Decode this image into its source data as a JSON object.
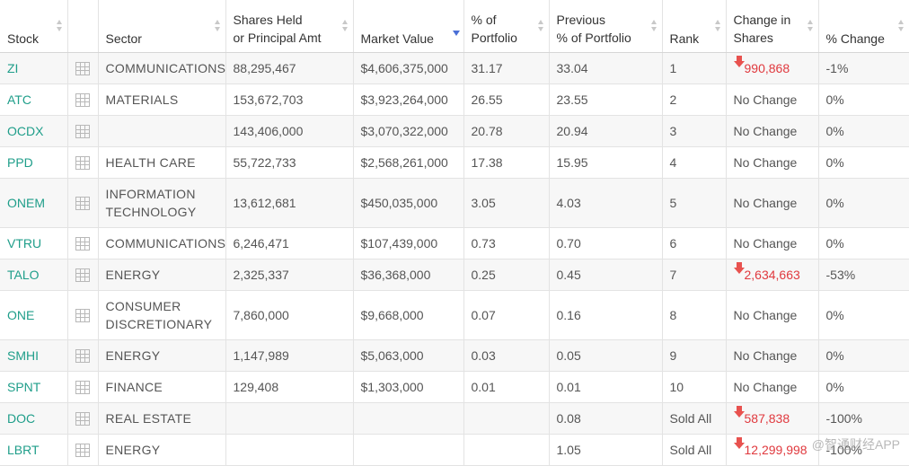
{
  "columns": [
    {
      "key": "stock",
      "label1": "Stock",
      "label2": "",
      "sort": "none"
    },
    {
      "key": "icon",
      "label1": "",
      "label2": "",
      "sort": ""
    },
    {
      "key": "sector",
      "label1": "Sector",
      "label2": "",
      "sort": "none"
    },
    {
      "key": "shares",
      "label1": "Shares Held",
      "label2": "or Principal Amt",
      "sort": "none"
    },
    {
      "key": "market_value",
      "label1": "Market Value",
      "label2": "",
      "sort": "desc"
    },
    {
      "key": "pct_portfolio",
      "label1": "% of",
      "label2": "Portfolio",
      "sort": "none"
    },
    {
      "key": "prev_pct",
      "label1": "Previous",
      "label2": "% of Portfolio",
      "sort": "none"
    },
    {
      "key": "rank",
      "label1": "Rank",
      "label2": "",
      "sort": "none"
    },
    {
      "key": "change_shares",
      "label1": "Change in",
      "label2": "Shares",
      "sort": "none"
    },
    {
      "key": "pct_change",
      "label1": "% Change",
      "label2": "",
      "sort": "none"
    }
  ],
  "rows": [
    {
      "stock": "ZI",
      "sector": "COMMUNICATIONS",
      "shares": "88,295,467",
      "market_value": "$4,606,375,000",
      "pct_portfolio": "31.17",
      "prev_pct": "33.04",
      "rank": "1",
      "change_shares": "990,868",
      "change_dir": "down",
      "pct_change": "-1%"
    },
    {
      "stock": "ATC",
      "sector": "MATERIALS",
      "shares": "153,672,703",
      "market_value": "$3,923,264,000",
      "pct_portfolio": "26.55",
      "prev_pct": "23.55",
      "rank": "2",
      "change_shares": "No Change",
      "change_dir": "none",
      "pct_change": "0%"
    },
    {
      "stock": "OCDX",
      "sector": "",
      "shares": "143,406,000",
      "market_value": "$3,070,322,000",
      "pct_portfolio": "20.78",
      "prev_pct": "20.94",
      "rank": "3",
      "change_shares": "No Change",
      "change_dir": "none",
      "pct_change": "0%"
    },
    {
      "stock": "PPD",
      "sector": "HEALTH CARE",
      "shares": "55,722,733",
      "market_value": "$2,568,261,000",
      "pct_portfolio": "17.38",
      "prev_pct": "15.95",
      "rank": "4",
      "change_shares": "No Change",
      "change_dir": "none",
      "pct_change": "0%"
    },
    {
      "stock": "ONEM",
      "sector": "INFORMATION TECHNOLOGY",
      "shares": "13,612,681",
      "market_value": "$450,035,000",
      "pct_portfolio": "3.05",
      "prev_pct": "4.03",
      "rank": "5",
      "change_shares": "No Change",
      "change_dir": "none",
      "pct_change": "0%",
      "tall": true
    },
    {
      "stock": "VTRU",
      "sector": "COMMUNICATIONS",
      "shares": "6,246,471",
      "market_value": "$107,439,000",
      "pct_portfolio": "0.73",
      "prev_pct": "0.70",
      "rank": "6",
      "change_shares": "No Change",
      "change_dir": "none",
      "pct_change": "0%"
    },
    {
      "stock": "TALO",
      "sector": "ENERGY",
      "shares": "2,325,337",
      "market_value": "$36,368,000",
      "pct_portfolio": "0.25",
      "prev_pct": "0.45",
      "rank": "7",
      "change_shares": "2,634,663",
      "change_dir": "down",
      "pct_change": "-53%"
    },
    {
      "stock": "ONE",
      "sector": "CONSUMER DISCRETIONARY",
      "shares": "7,860,000",
      "market_value": "$9,668,000",
      "pct_portfolio": "0.07",
      "prev_pct": "0.16",
      "rank": "8",
      "change_shares": "No Change",
      "change_dir": "none",
      "pct_change": "0%",
      "tall": true
    },
    {
      "stock": "SMHI",
      "sector": "ENERGY",
      "shares": "1,147,989",
      "market_value": "$5,063,000",
      "pct_portfolio": "0.03",
      "prev_pct": "0.05",
      "rank": "9",
      "change_shares": "No Change",
      "change_dir": "none",
      "pct_change": "0%"
    },
    {
      "stock": "SPNT",
      "sector": "FINANCE",
      "shares": "129,408",
      "market_value": "$1,303,000",
      "pct_portfolio": "0.01",
      "prev_pct": "0.01",
      "rank": "10",
      "change_shares": "No Change",
      "change_dir": "none",
      "pct_change": "0%"
    },
    {
      "stock": "DOC",
      "sector": "REAL ESTATE",
      "shares": "",
      "market_value": "",
      "pct_portfolio": "",
      "prev_pct": "0.08",
      "rank": "Sold All",
      "change_shares": "587,838",
      "change_dir": "down",
      "pct_change": "-100%"
    },
    {
      "stock": "LBRT",
      "sector": "ENERGY",
      "shares": "",
      "market_value": "",
      "pct_portfolio": "",
      "prev_pct": "1.05",
      "rank": "Sold All",
      "change_shares": "12,299,998",
      "change_dir": "down",
      "pct_change": "-100%"
    }
  ],
  "watermark": "@智通财经APP",
  "colors": {
    "stock_link": "#1f9e8a",
    "decrease": "#e0393e",
    "sort_active": "#4a6fd6"
  }
}
